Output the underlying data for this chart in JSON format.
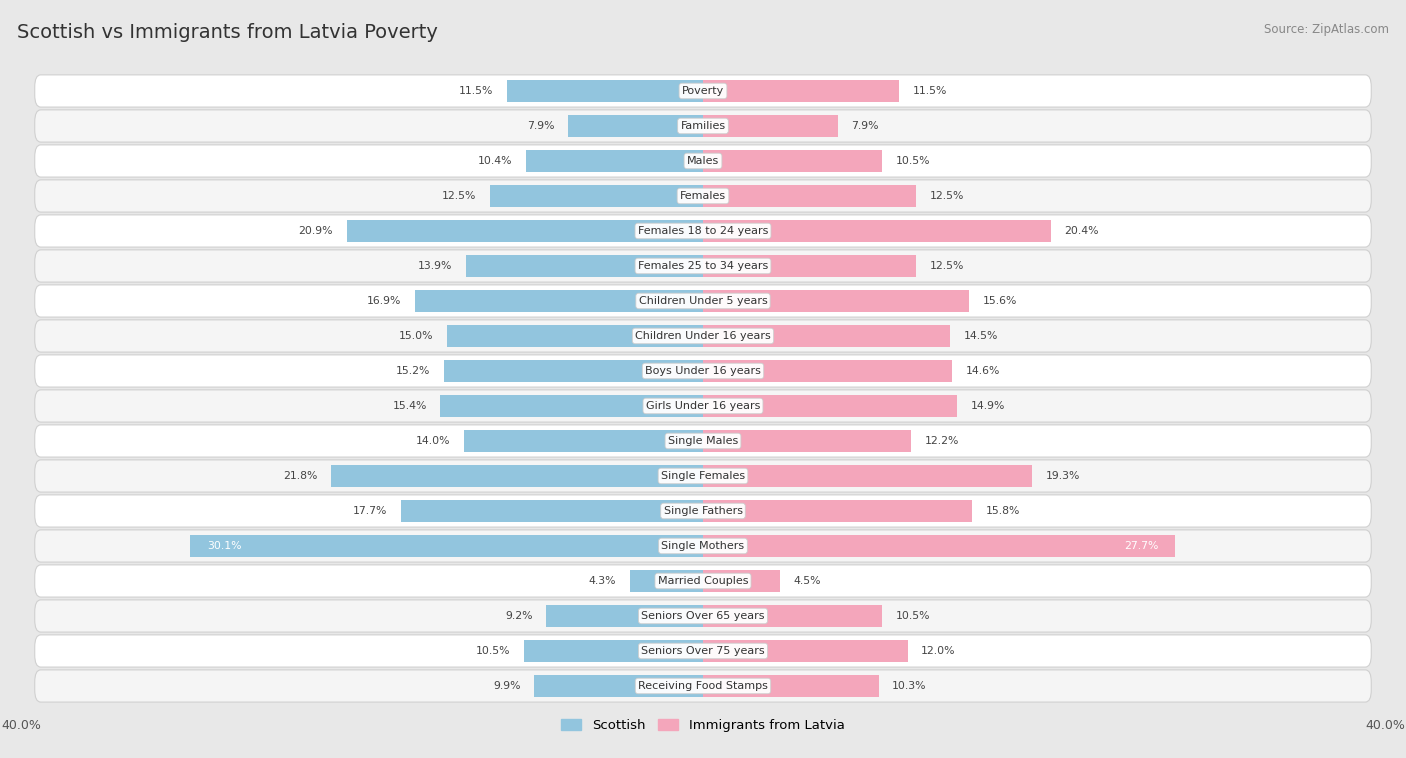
{
  "title": "Scottish vs Immigrants from Latvia Poverty",
  "source": "Source: ZipAtlas.com",
  "categories": [
    "Poverty",
    "Families",
    "Males",
    "Females",
    "Females 18 to 24 years",
    "Females 25 to 34 years",
    "Children Under 5 years",
    "Children Under 16 years",
    "Boys Under 16 years",
    "Girls Under 16 years",
    "Single Males",
    "Single Females",
    "Single Fathers",
    "Single Mothers",
    "Married Couples",
    "Seniors Over 65 years",
    "Seniors Over 75 years",
    "Receiving Food Stamps"
  ],
  "scottish": [
    11.5,
    7.9,
    10.4,
    12.5,
    20.9,
    13.9,
    16.9,
    15.0,
    15.2,
    15.4,
    14.0,
    21.8,
    17.7,
    30.1,
    4.3,
    9.2,
    10.5,
    9.9
  ],
  "latvia": [
    11.5,
    7.9,
    10.5,
    12.5,
    20.4,
    12.5,
    15.6,
    14.5,
    14.6,
    14.9,
    12.2,
    19.3,
    15.8,
    27.7,
    4.5,
    10.5,
    12.0,
    10.3
  ],
  "scottish_color": "#92C5DE",
  "latvia_color": "#F4A6BB",
  "axis_max": 40.0,
  "bar_height": 0.62,
  "bg_color": "#e8e8e8",
  "row_bg_even": "#f5f5f5",
  "row_bg_odd": "#ffffff"
}
